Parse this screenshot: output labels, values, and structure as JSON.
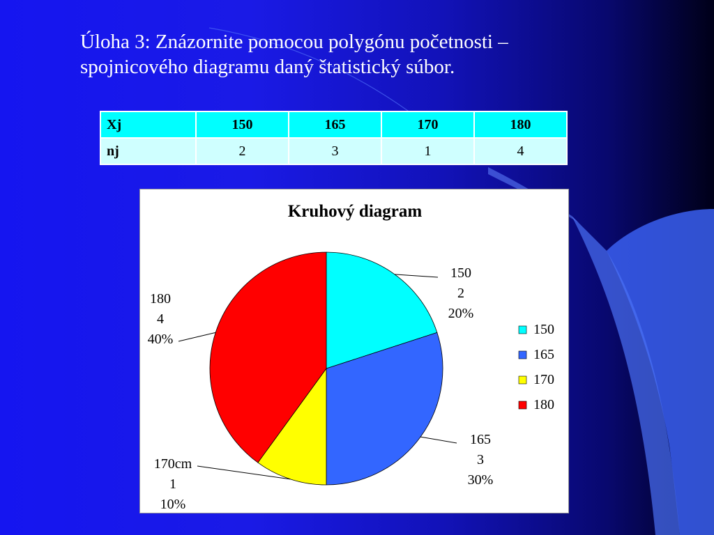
{
  "slide": {
    "title_line1": "Úloha 3: Znázornite pomocou polygónu početnosti –",
    "title_line2": "spojnicového diagramu daný štatistický súbor."
  },
  "table": {
    "row1": [
      "Xj",
      "150",
      "165",
      "170",
      "180"
    ],
    "row2": [
      "nj",
      "2",
      "3",
      "1",
      "4"
    ]
  },
  "chart_data": {
    "type": "pie",
    "title": "Kruhový diagram",
    "legend_position": "right",
    "slices": [
      {
        "category": "150",
        "value": 2,
        "percent": "20%",
        "label_lines": [
          "150",
          "2",
          "20%"
        ],
        "color": "#00ffff"
      },
      {
        "category": "165",
        "value": 3,
        "percent": "30%",
        "label_lines": [
          "165",
          "3",
          "30%"
        ],
        "color": "#3366ff"
      },
      {
        "category": "170",
        "value": 1,
        "percent": "10%",
        "label_lines": [
          "170cm",
          "1",
          "10%"
        ],
        "color": "#ffff00"
      },
      {
        "category": "180",
        "value": 4,
        "percent": "40%",
        "label_lines": [
          "180",
          "4",
          "40%"
        ],
        "color": "#ff0000"
      }
    ],
    "legend": [
      "150",
      "165",
      "170",
      "180"
    ]
  }
}
